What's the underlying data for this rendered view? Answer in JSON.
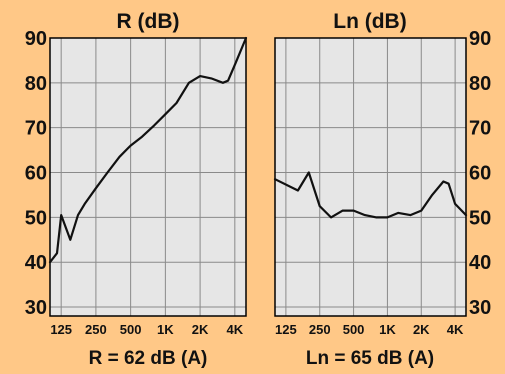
{
  "colors": {
    "frame": "#ffc887",
    "plot": "#e6e6e6",
    "grid": "#8a8a8a",
    "curve": "#111111",
    "border": "#000000"
  },
  "chart_data": [
    {
      "type": "line",
      "title": "R (dB)",
      "rating": "R = 62 dB (A)",
      "xscale": "log",
      "xlim": [
        100,
        5000
      ],
      "ylim": [
        28,
        90
      ],
      "yticks": [
        30,
        40,
        50,
        60,
        70,
        80,
        90
      ],
      "ytick_labels": [
        "30",
        "40",
        "50",
        "60",
        "70",
        "80",
        "90"
      ],
      "xticks": [
        125,
        250,
        500,
        1000,
        2000,
        4000
      ],
      "xtick_labels": [
        "125",
        "250",
        "500",
        "1K",
        "2K",
        "4K"
      ],
      "grid": true,
      "series": [
        {
          "x": [
            100,
            115,
            125,
            150,
            175,
            200,
            250,
            315,
            400,
            500,
            630,
            800,
            1000,
            1250,
            1600,
            2000,
            2500,
            3150,
            3500,
            4000,
            5000
          ],
          "y": [
            40,
            42,
            50.5,
            45,
            50.5,
            53,
            56.5,
            60,
            63.5,
            66,
            68,
            70.5,
            73,
            75.5,
            80,
            81.5,
            81,
            80,
            80.5,
            84,
            90
          ]
        }
      ]
    },
    {
      "type": "line",
      "title": "Ln (dB)",
      "rating": "Ln = 65 dB (A)",
      "xscale": "log",
      "xlim": [
        100,
        5000
      ],
      "ylim": [
        28,
        90
      ],
      "yticks": [
        30,
        40,
        50,
        60,
        70,
        80,
        90
      ],
      "ytick_labels": [
        "30",
        "40",
        "50",
        "60",
        "70",
        "80",
        "90"
      ],
      "xticks": [
        125,
        250,
        500,
        1000,
        2000,
        4000
      ],
      "xtick_labels": [
        "125",
        "250",
        "500",
        "1K",
        "2K",
        "4K"
      ],
      "grid": true,
      "series": [
        {
          "x": [
            100,
            160,
            200,
            250,
            315,
            400,
            500,
            630,
            800,
            1000,
            1250,
            1600,
            2000,
            2500,
            3150,
            3500,
            4000,
            5000
          ],
          "y": [
            58.5,
            56,
            60,
            52.5,
            50,
            51.5,
            51.5,
            50.5,
            50,
            50,
            51,
            50.5,
            51.5,
            55,
            58,
            57.5,
            53,
            50.5
          ]
        }
      ]
    }
  ]
}
